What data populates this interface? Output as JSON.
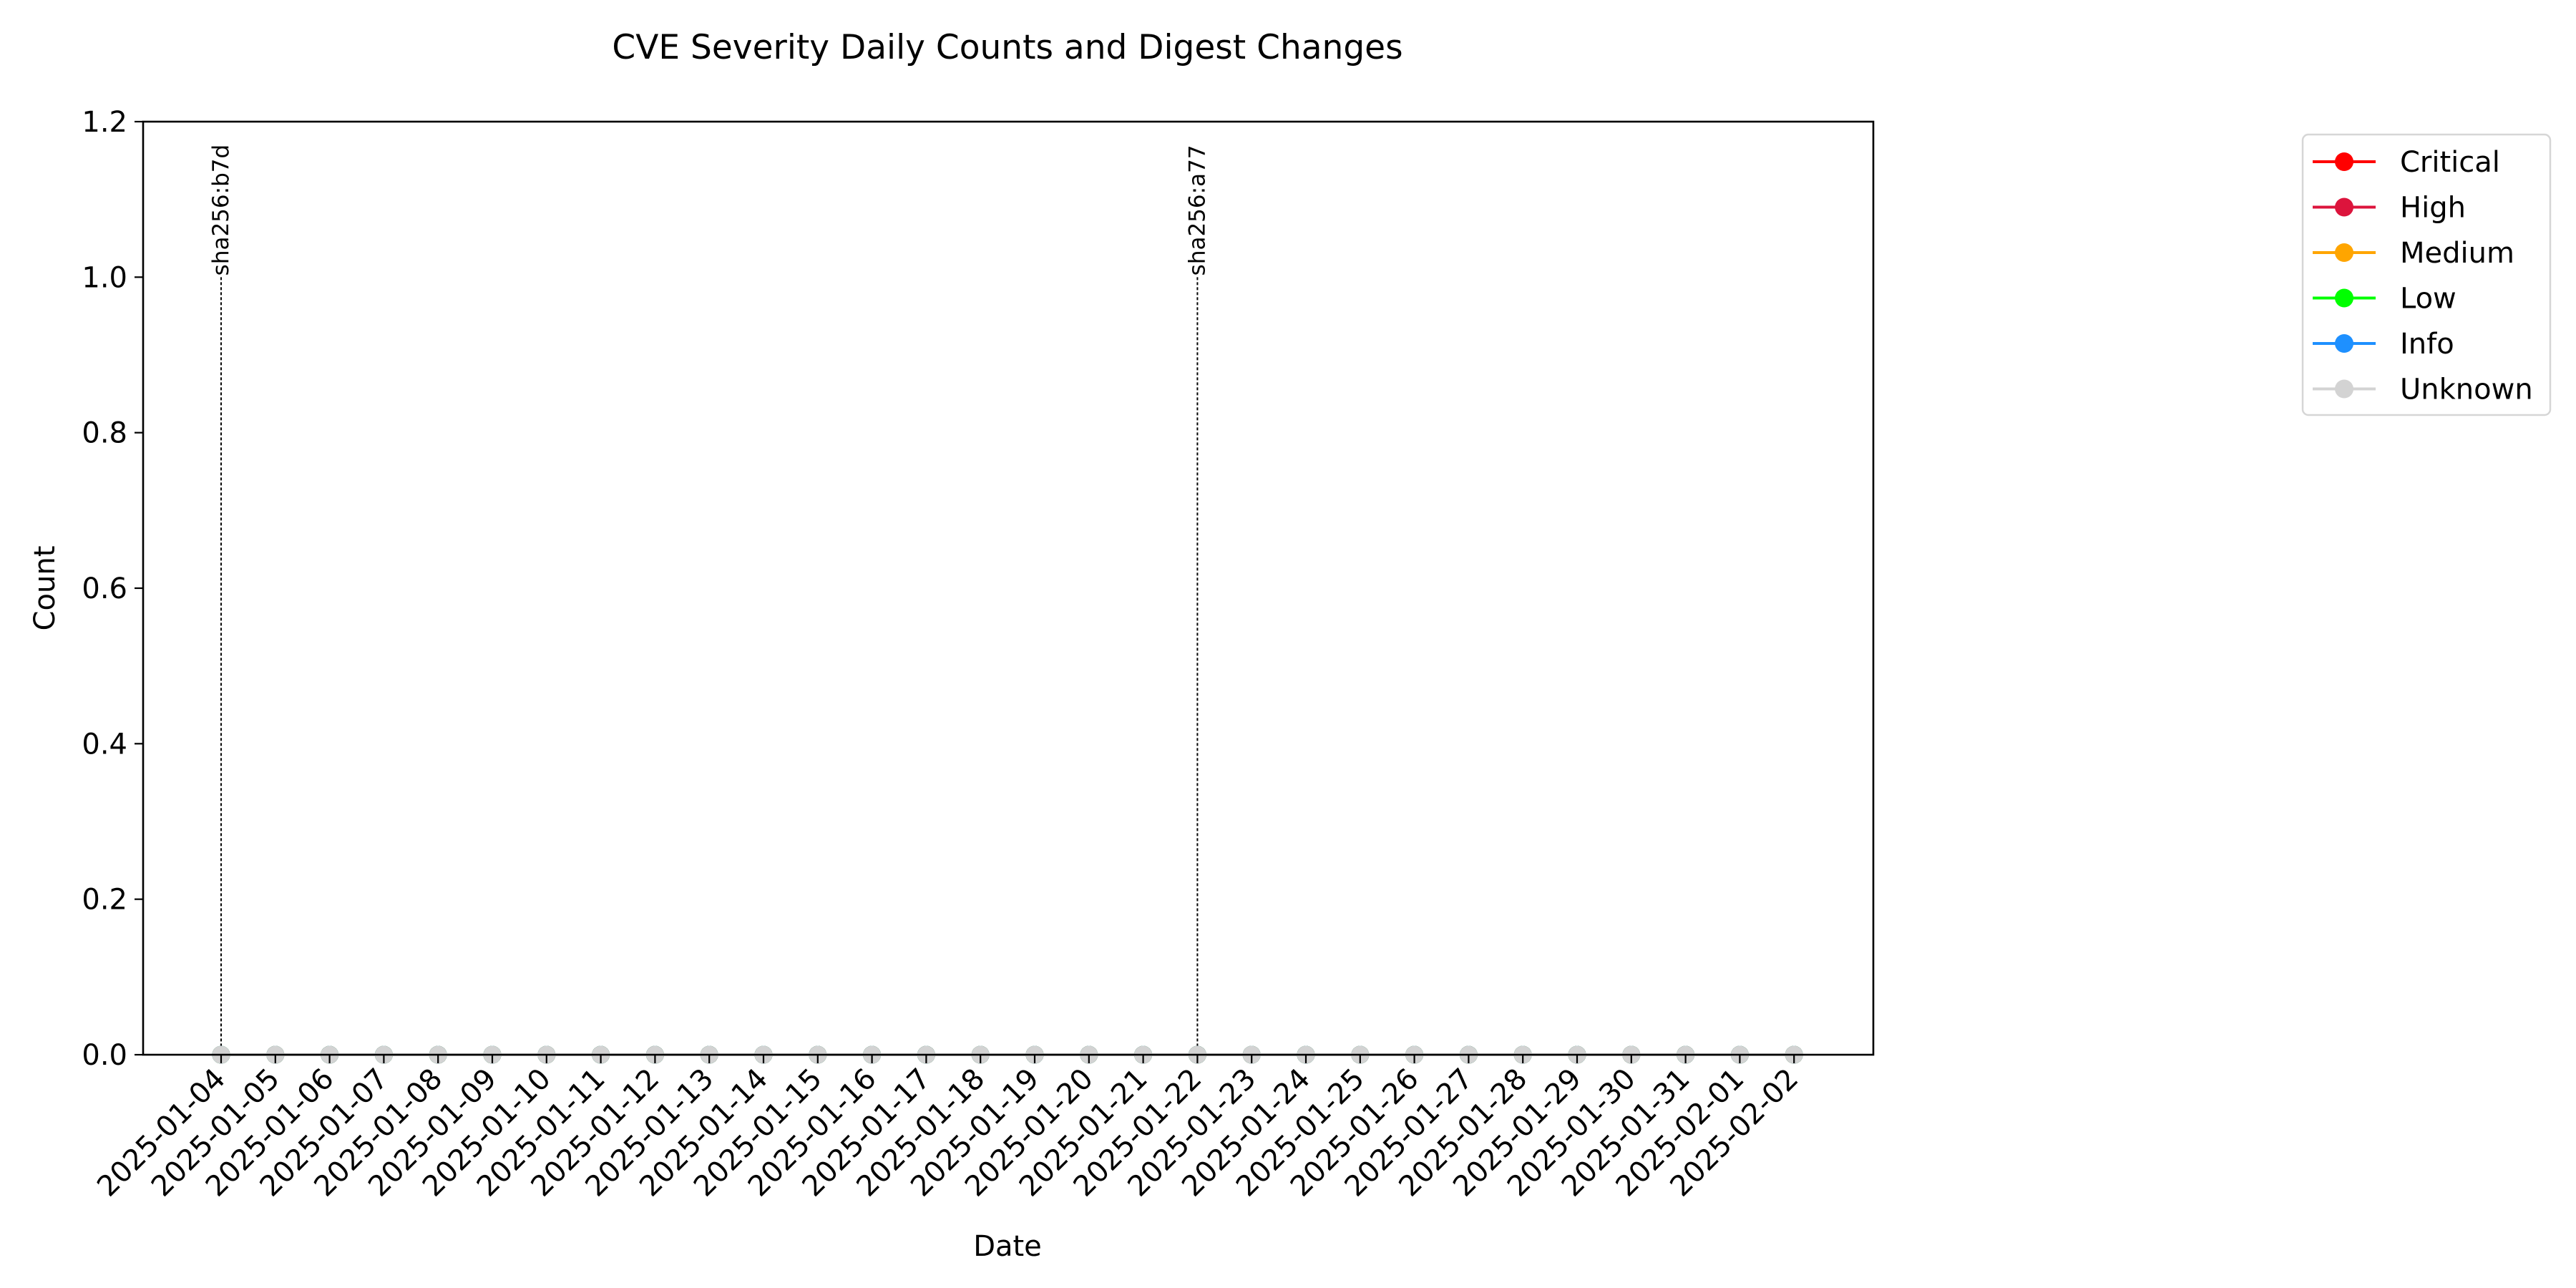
{
  "chart_data": {
    "type": "line",
    "title": "CVE Severity Daily Counts and Digest Changes",
    "xlabel": "Date",
    "ylabel": "Count",
    "ylim": [
      0,
      1.2
    ],
    "yticks": [
      "0.0",
      "0.2",
      "0.4",
      "0.6",
      "0.8",
      "1.0",
      "1.2"
    ],
    "ytick_values": [
      0,
      0.2,
      0.4,
      0.6,
      0.8,
      1.0,
      1.2
    ],
    "grid": false,
    "legend_position": "upper-right-outside",
    "x": [
      "2025-01-04",
      "2025-01-05",
      "2025-01-06",
      "2025-01-07",
      "2025-01-08",
      "2025-01-09",
      "2025-01-10",
      "2025-01-11",
      "2025-01-12",
      "2025-01-13",
      "2025-01-14",
      "2025-01-15",
      "2025-01-16",
      "2025-01-17",
      "2025-01-18",
      "2025-01-19",
      "2025-01-20",
      "2025-01-21",
      "2025-01-22",
      "2025-01-23",
      "2025-01-24",
      "2025-01-25",
      "2025-01-26",
      "2025-01-27",
      "2025-01-28",
      "2025-01-29",
      "2025-01-30",
      "2025-01-31",
      "2025-02-01",
      "2025-02-02"
    ],
    "series": [
      {
        "name": "Critical",
        "color": "#ff0000",
        "values": [
          0,
          0,
          0,
          0,
          0,
          0,
          0,
          0,
          0,
          0,
          0,
          0,
          0,
          0,
          0,
          0,
          0,
          0,
          0,
          0,
          0,
          0,
          0,
          0,
          0,
          0,
          0,
          0,
          0,
          0
        ]
      },
      {
        "name": "High",
        "color": "#dc143c",
        "values": [
          0,
          0,
          0,
          0,
          0,
          0,
          0,
          0,
          0,
          0,
          0,
          0,
          0,
          0,
          0,
          0,
          0,
          0,
          0,
          0,
          0,
          0,
          0,
          0,
          0,
          0,
          0,
          0,
          0,
          0
        ]
      },
      {
        "name": "Medium",
        "color": "#ffa500",
        "values": [
          0,
          0,
          0,
          0,
          0,
          0,
          0,
          0,
          0,
          0,
          0,
          0,
          0,
          0,
          0,
          0,
          0,
          0,
          0,
          0,
          0,
          0,
          0,
          0,
          0,
          0,
          0,
          0,
          0,
          0
        ]
      },
      {
        "name": "Low",
        "color": "#00ff00",
        "values": [
          0,
          0,
          0,
          0,
          0,
          0,
          0,
          0,
          0,
          0,
          0,
          0,
          0,
          0,
          0,
          0,
          0,
          0,
          0,
          0,
          0,
          0,
          0,
          0,
          0,
          0,
          0,
          0,
          0,
          0
        ]
      },
      {
        "name": "Info",
        "color": "#1e90ff",
        "values": [
          0,
          0,
          0,
          0,
          0,
          0,
          0,
          0,
          0,
          0,
          0,
          0,
          0,
          0,
          0,
          0,
          0,
          0,
          0,
          0,
          0,
          0,
          0,
          0,
          0,
          0,
          0,
          0,
          0,
          0
        ]
      },
      {
        "name": "Unknown",
        "color": "#d3d3d3",
        "values": [
          0,
          0,
          0,
          0,
          0,
          0,
          0,
          0,
          0,
          0,
          0,
          0,
          0,
          0,
          0,
          0,
          0,
          0,
          0,
          0,
          0,
          0,
          0,
          0,
          0,
          0,
          0,
          0,
          0,
          0
        ]
      }
    ],
    "annotations": [
      {
        "x": "2025-01-04",
        "label": "sha256:b7d"
      },
      {
        "x": "2025-01-22",
        "label": "sha256:a77"
      }
    ]
  }
}
